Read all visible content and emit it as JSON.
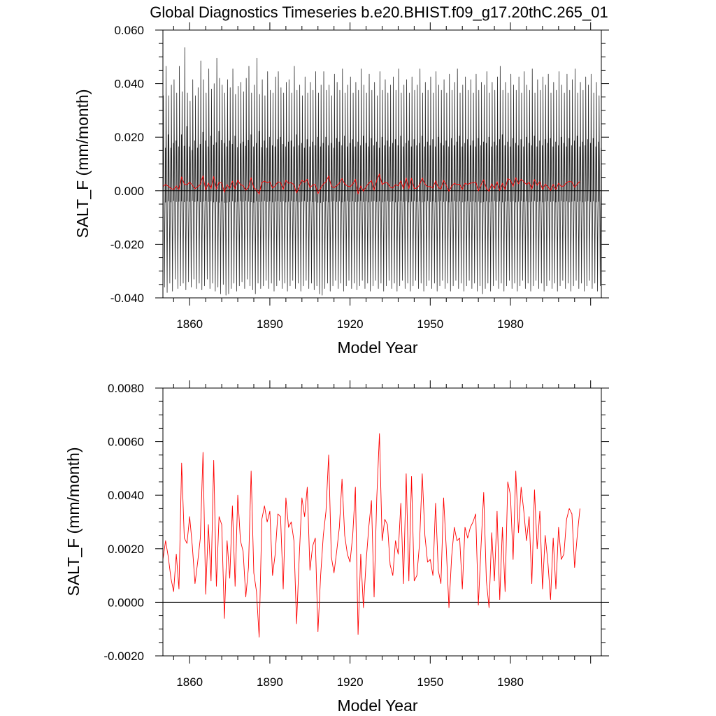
{
  "title": "Global Diagnostics Timeseries b.e20.BHIST.f09_g17.20thC.265_01",
  "chart_data": [
    {
      "type": "line",
      "panel": "top",
      "xlabel": "Model Year",
      "ylabel": "SALT_F (mm/month)",
      "xlim": [
        1850,
        2014
      ],
      "ylim": [
        -0.04,
        0.06
      ],
      "x_ticks": [
        1860,
        1890,
        1920,
        1950,
        1980
      ],
      "x_tick_labels": [
        "1860",
        "1890",
        "1920",
        "1950",
        "1980"
      ],
      "y_ticks": [
        -0.04,
        -0.02,
        0.0,
        0.02,
        0.04,
        0.06
      ],
      "y_tick_labels": [
        "-0.040",
        "-0.020",
        "0.000",
        "0.020",
        "0.040",
        "0.060"
      ],
      "zero_line": true,
      "series": [
        {
          "color": "#000000",
          "resolution": "monthly",
          "start_year": 1850,
          "annual_peak": [
            0.0355,
            0.0465,
            0.0355,
            0.0395,
            0.0415,
            0.0365,
            0.0465,
            0.037,
            0.0535,
            0.0365,
            0.0335,
            0.0415,
            0.0355,
            0.0385,
            0.0485,
            0.0415,
            0.0365,
            0.0455,
            0.038,
            0.04,
            0.0495,
            0.042,
            0.0395,
            0.0365,
            0.0415,
            0.0385,
            0.0455,
            0.036,
            0.039,
            0.0405,
            0.037,
            0.042,
            0.0465,
            0.0365,
            0.0395,
            0.0495,
            0.036,
            0.0415,
            0.0355,
            0.0445,
            0.0375,
            0.0365,
            0.0425,
            0.0445,
            0.0385,
            0.0365,
            0.0405,
            0.0415,
            0.0365,
            0.0465,
            0.0375,
            0.0395,
            0.0355,
            0.0425,
            0.0365,
            0.0405,
            0.0375,
            0.0445,
            0.0365,
            0.0395,
            0.0445,
            0.0375,
            0.0395,
            0.0355,
            0.0435,
            0.0405,
            0.0375,
            0.0455,
            0.0365,
            0.0395,
            0.0425,
            0.0365,
            0.0405,
            0.0375,
            0.0455,
            0.0395,
            0.0365,
            0.0435,
            0.0375,
            0.0405,
            0.0355,
            0.0445,
            0.0375,
            0.0415,
            0.0365,
            0.0395,
            0.0425,
            0.0375,
            0.0455,
            0.0365,
            0.0395,
            0.0415,
            0.0365,
            0.0425,
            0.0375,
            0.0395,
            0.0455,
            0.0365,
            0.0405,
            0.0375,
            0.0425,
            0.0365,
            0.0445,
            0.0395,
            0.0375,
            0.0415,
            0.0365,
            0.0435,
            0.0375,
            0.0405,
            0.0455,
            0.0365,
            0.0395,
            0.0425,
            0.0375,
            0.0415,
            0.0365,
            0.0435,
            0.0375,
            0.0405,
            0.0395,
            0.0445,
            0.0365,
            0.0405,
            0.0375,
            0.0425,
            0.0465,
            0.0375,
            0.0405,
            0.0365,
            0.0435,
            0.0395,
            0.0375,
            0.0425,
            0.0365,
            0.0445,
            0.0395,
            0.0375,
            0.0455,
            0.0365,
            0.0415,
            0.0375,
            0.0425,
            0.0395,
            0.0435,
            0.0365,
            0.0405,
            0.0375,
            0.0445,
            0.0395,
            0.0365,
            0.0435,
            0.0375,
            0.0415,
            0.0455,
            0.0365,
            0.0405,
            0.0375,
            0.0425,
            0.0395,
            0.0435,
            0.0365,
            0.0405,
            0.0355,
            0.0375,
            0.0365
          ],
          "annual_trough": [
            -0.036,
            -0.038,
            -0.0345,
            -0.0375,
            -0.033,
            -0.0365,
            -0.0355,
            -0.0345,
            -0.037,
            -0.034,
            -0.036,
            -0.033,
            -0.0365,
            -0.0345,
            -0.037,
            -0.0355,
            -0.033,
            -0.0365,
            -0.0345,
            -0.0375,
            -0.036,
            -0.0385,
            -0.035,
            -0.039,
            -0.0385,
            -0.0365,
            -0.0345,
            -0.0375,
            -0.0355,
            -0.034,
            -0.0365,
            -0.033,
            -0.0355,
            -0.037,
            -0.0385,
            -0.0345,
            -0.0365,
            -0.0355,
            -0.0335,
            -0.0365,
            -0.0345,
            -0.0375,
            -0.0355,
            -0.0335,
            -0.0365,
            -0.0345,
            -0.0375,
            -0.0355,
            -0.0335,
            -0.0365,
            -0.0345,
            -0.0375,
            -0.0355,
            -0.0335,
            -0.0365,
            -0.0345,
            -0.037,
            -0.0355,
            -0.0385,
            -0.039,
            -0.0365,
            -0.0345,
            -0.0375,
            -0.0355,
            -0.0335,
            -0.0365,
            -0.0345,
            -0.0375,
            -0.0355,
            -0.0335,
            -0.0365,
            -0.0345,
            -0.037,
            -0.0355,
            -0.0335,
            -0.0365,
            -0.0345,
            -0.0375,
            -0.0355,
            -0.0335,
            -0.0365,
            -0.0345,
            -0.0375,
            -0.0355,
            -0.0335,
            -0.0365,
            -0.0345,
            -0.0375,
            -0.0355,
            -0.0335,
            -0.0365,
            -0.0345,
            -0.0375,
            -0.0355,
            -0.0335,
            -0.0365,
            -0.0345,
            -0.0375,
            -0.0355,
            -0.0335,
            -0.0365,
            -0.0345,
            -0.0375,
            -0.0355,
            -0.0335,
            -0.0365,
            -0.0345,
            -0.0375,
            -0.0355,
            -0.0335,
            -0.0365,
            -0.0345,
            -0.0375,
            -0.0355,
            -0.0335,
            -0.0365,
            -0.0345,
            -0.0375,
            -0.0355,
            -0.0385,
            -0.0365,
            -0.0345,
            -0.0375,
            -0.0355,
            -0.0335,
            -0.0365,
            -0.0345,
            -0.0375,
            -0.0355,
            -0.0335,
            -0.0365,
            -0.0345,
            -0.0375,
            -0.0355,
            -0.0335,
            -0.0365,
            -0.0345,
            -0.0375,
            -0.0355,
            -0.0335,
            -0.0365,
            -0.0345,
            -0.0375,
            -0.0355,
            -0.0335,
            -0.0365,
            -0.0345,
            -0.0375,
            -0.0355,
            -0.0335,
            -0.0365,
            -0.0345,
            -0.0375,
            -0.0355,
            -0.0335,
            -0.0365,
            -0.0345,
            -0.0375,
            -0.0355,
            -0.0335,
            -0.0365,
            -0.0345,
            -0.0375,
            -0.0355,
            -0.0335,
            -0.0315,
            -0.0305,
            -0.031
          ]
        },
        {
          "color": "#ff0000",
          "resolution": "annual",
          "x_start": 1850,
          "x_step": 1,
          "values_ref": "annual_mean"
        }
      ]
    },
    {
      "type": "line",
      "panel": "bottom",
      "xlabel": "Model Year",
      "ylabel": "SALT_F (mm/month)",
      "xlim": [
        1850,
        2014
      ],
      "ylim": [
        -0.002,
        0.008
      ],
      "x_ticks": [
        1860,
        1890,
        1920,
        1950,
        1980
      ],
      "x_tick_labels": [
        "1860",
        "1890",
        "1920",
        "1950",
        "1980"
      ],
      "y_ticks": [
        -0.002,
        0.0,
        0.002,
        0.004,
        0.006,
        0.008
      ],
      "y_tick_labels": [
        "-0.0020",
        "0.0000",
        "0.0020",
        "0.0040",
        "0.0060",
        "0.0080"
      ],
      "zero_line": true,
      "series": [
        {
          "color": "#ff0000",
          "x_start": 1850,
          "x_step": 1,
          "values_ref": "annual_mean"
        }
      ]
    }
  ],
  "annual_mean": [
    0.0016,
    0.0023,
    0.0017,
    0.0009,
    0.0004,
    0.0018,
    0.0005,
    0.0052,
    0.0024,
    0.0022,
    0.0032,
    0.0021,
    0.0007,
    0.0015,
    0.0024,
    0.0056,
    0.0003,
    0.0029,
    0.0008,
    0.0053,
    0.0006,
    0.0032,
    0.0029,
    -0.0006,
    0.0023,
    0.0009,
    0.0036,
    0.0006,
    0.004,
    0.0023,
    0.0019,
    0.0002,
    0.0013,
    0.0049,
    0.0011,
    0.0004,
    -0.0013,
    0.0031,
    0.0036,
    0.003,
    0.0034,
    0.001,
    0.0018,
    0.0033,
    0.0032,
    0.0005,
    0.0039,
    0.0028,
    0.003,
    0.0023,
    -0.0008,
    0.0017,
    0.0039,
    0.0032,
    0.0043,
    0.0012,
    0.0021,
    0.0024,
    -0.0011,
    0.001,
    0.0025,
    0.0034,
    0.0055,
    0.0017,
    0.0011,
    0.0019,
    0.0028,
    0.0046,
    0.0025,
    0.0018,
    0.0015,
    0.0025,
    0.0043,
    -0.0012,
    0.0018,
    -0.0002,
    0.0015,
    0.0028,
    0.0038,
    0.0002,
    0.0039,
    0.0063,
    0.0023,
    0.0031,
    0.0029,
    0.0014,
    0.001,
    0.0023,
    0.0018,
    0.0037,
    0.0007,
    0.0048,
    0.0008,
    0.0047,
    0.0008,
    0.001,
    0.0022,
    0.0048,
    0.0025,
    0.0015,
    0.0016,
    0.001,
    0.0037,
    0.0012,
    0.0007,
    0.0039,
    0.002,
    -0.0002,
    0.0017,
    0.0028,
    0.0023,
    0.0024,
    0.0005,
    0.0028,
    0.0024,
    0.0028,
    0.003,
    0.0033,
    -0.0001,
    0.0021,
    0.0041,
    0.0008,
    -0.0002,
    0.0026,
    0.0008,
    0.0034,
    0.0001,
    0.0028,
    0.0004,
    0.0045,
    0.004,
    0.0016,
    0.0049,
    0.0026,
    0.0043,
    0.0034,
    0.0023,
    0.0032,
    0.0007,
    0.0042,
    0.002,
    0.0034,
    0.0005,
    0.0025,
    0.0015,
    0.0001,
    0.0024,
    0.0005,
    0.0028,
    0.0016,
    0.0018,
    0.0031,
    0.0035,
    0.0033,
    0.0013,
    0.0025,
    0.0035
  ]
}
